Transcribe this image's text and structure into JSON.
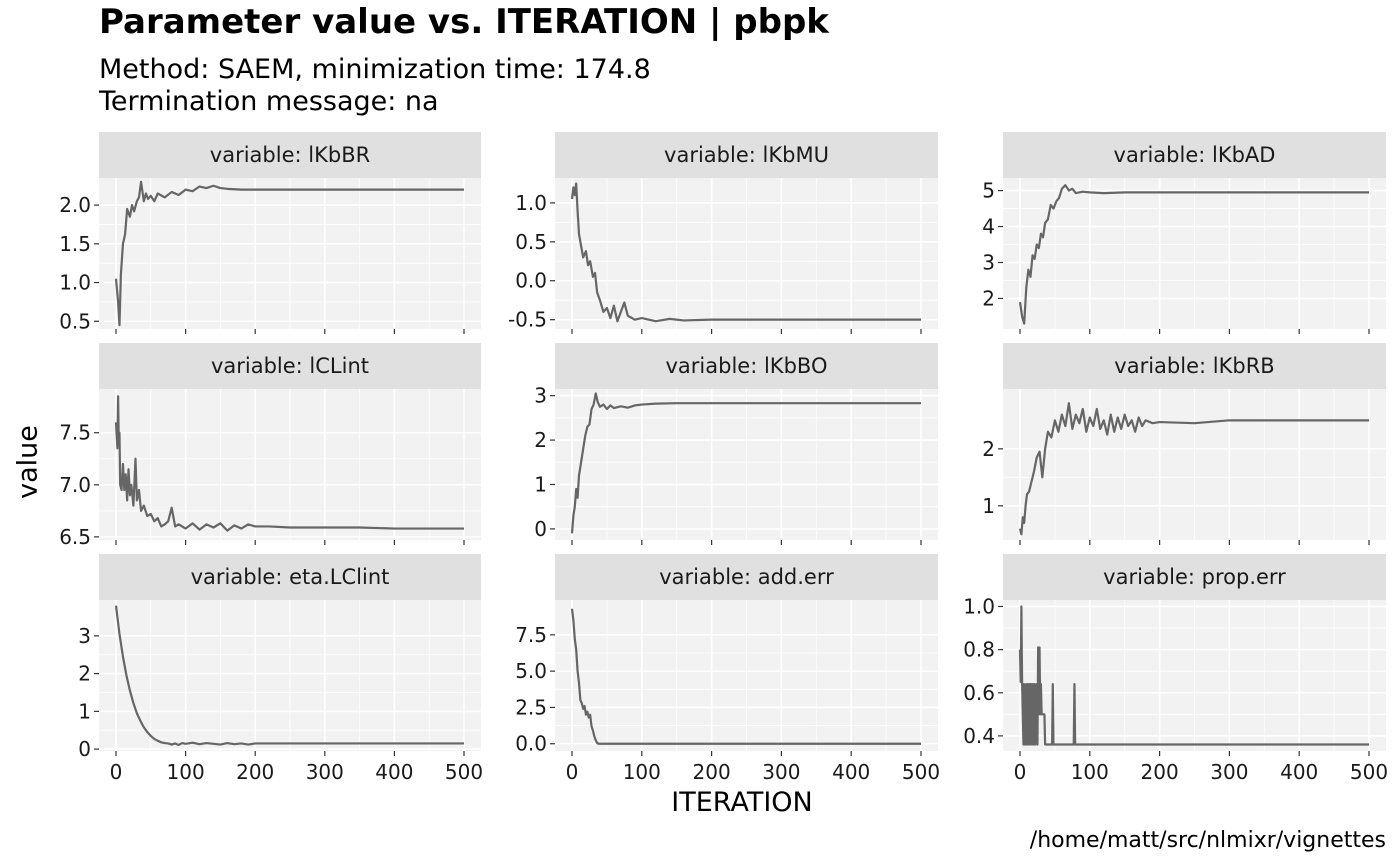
{
  "title": "Parameter value vs. ITERATION | pbpk",
  "subtitle_line1": "Method: SAEM, minimization time: 174.8",
  "subtitle_line2": "Termination message: na",
  "caption": "/home/matt/src/nlmixr/vignettes",
  "colors": {
    "line": "#666666",
    "panel_bg": "#f2f2f2",
    "strip_bg": "#e0e0e0",
    "grid": "#ffffff"
  },
  "chart_data": {
    "type": "line",
    "xlabel": "ITERATION",
    "ylabel": "value",
    "xlim": [
      0,
      500
    ],
    "xticks": [
      0,
      100,
      200,
      300,
      400,
      500
    ],
    "facet_prefix": "variable: ",
    "facets": [
      {
        "name": "lKbBR",
        "strip": "variable: lKbBR",
        "ylim": [
          0.4,
          2.35
        ],
        "yticks": [
          0.5,
          1.0,
          1.5,
          2.0
        ],
        "ytick_labels": [
          "0.5",
          "1.0",
          "1.5",
          "2.0"
        ],
        "x": [
          0,
          3,
          5,
          7,
          10,
          13,
          16,
          20,
          23,
          26,
          30,
          33,
          36,
          40,
          43,
          46,
          50,
          55,
          60,
          70,
          80,
          90,
          100,
          110,
          120,
          130,
          140,
          150,
          160,
          180,
          200,
          300,
          400,
          500
        ],
        "y": [
          1.05,
          0.75,
          0.45,
          1.1,
          1.5,
          1.62,
          1.95,
          1.85,
          2.0,
          1.92,
          2.05,
          2.1,
          2.3,
          2.05,
          2.15,
          2.08,
          2.12,
          2.05,
          2.15,
          2.1,
          2.17,
          2.13,
          2.2,
          2.18,
          2.24,
          2.22,
          2.25,
          2.22,
          2.21,
          2.2,
          2.2,
          2.2,
          2.2,
          2.2
        ]
      },
      {
        "name": "lKbMU",
        "strip": "variable: lKbMU",
        "ylim": [
          -0.62,
          1.32
        ],
        "yticks": [
          -0.5,
          0.0,
          0.5,
          1.0
        ],
        "ytick_labels": [
          "-0.5",
          "0.0",
          "0.5",
          "1.0"
        ],
        "x": [
          0,
          2,
          4,
          6,
          8,
          10,
          13,
          16,
          20,
          23,
          26,
          30,
          33,
          36,
          40,
          45,
          50,
          55,
          60,
          65,
          70,
          75,
          80,
          90,
          100,
          120,
          140,
          160,
          200,
          300,
          400,
          500
        ],
        "y": [
          1.05,
          1.2,
          1.1,
          1.25,
          0.9,
          0.6,
          0.45,
          0.3,
          0.38,
          0.2,
          0.25,
          0.05,
          0.1,
          -0.15,
          -0.25,
          -0.4,
          -0.35,
          -0.48,
          -0.32,
          -0.52,
          -0.4,
          -0.28,
          -0.45,
          -0.5,
          -0.48,
          -0.52,
          -0.49,
          -0.51,
          -0.5,
          -0.5,
          -0.5,
          -0.5
        ]
      },
      {
        "name": "lKbAD",
        "strip": "variable: lKbAD",
        "ylim": [
          1.15,
          5.35
        ],
        "yticks": [
          2,
          3,
          4,
          5
        ],
        "ytick_labels": [
          "2",
          "3",
          "4",
          "5"
        ],
        "x": [
          0,
          3,
          6,
          9,
          12,
          15,
          18,
          21,
          24,
          27,
          30,
          33,
          36,
          40,
          44,
          48,
          52,
          56,
          60,
          65,
          70,
          75,
          80,
          90,
          100,
          120,
          150,
          200,
          300,
          400,
          500
        ],
        "y": [
          1.9,
          1.5,
          1.3,
          2.3,
          2.8,
          2.6,
          3.2,
          3.1,
          3.5,
          3.4,
          3.8,
          3.7,
          4.1,
          4.2,
          4.6,
          4.5,
          4.7,
          4.8,
          5.05,
          5.15,
          5.0,
          5.05,
          4.93,
          4.97,
          4.95,
          4.93,
          4.95,
          4.95,
          4.95,
          4.95,
          4.95
        ]
      },
      {
        "name": "lCLint",
        "strip": "variable: lCLint",
        "ylim": [
          6.47,
          7.92
        ],
        "yticks": [
          6.5,
          7.0,
          7.5
        ],
        "ytick_labels": [
          "6.5",
          "7.0",
          "7.5"
        ],
        "x": [
          0,
          2,
          3,
          4,
          5,
          6,
          8,
          10,
          12,
          14,
          16,
          18,
          20,
          22,
          25,
          28,
          30,
          33,
          36,
          40,
          45,
          50,
          55,
          60,
          65,
          70,
          75,
          80,
          85,
          90,
          100,
          110,
          120,
          130,
          140,
          150,
          160,
          170,
          180,
          190,
          200,
          220,
          250,
          300,
          350,
          400,
          450,
          500
        ],
        "y": [
          7.6,
          7.35,
          7.85,
          7.4,
          7.5,
          7.0,
          6.95,
          7.2,
          6.95,
          7.1,
          6.85,
          7.15,
          6.9,
          7.0,
          6.8,
          7.25,
          6.85,
          6.95,
          6.75,
          6.8,
          6.7,
          6.72,
          6.65,
          6.68,
          6.6,
          6.62,
          6.65,
          6.78,
          6.6,
          6.62,
          6.58,
          6.63,
          6.57,
          6.62,
          6.59,
          6.63,
          6.56,
          6.61,
          6.58,
          6.62,
          6.6,
          6.6,
          6.59,
          6.59,
          6.59,
          6.58,
          6.58,
          6.58
        ]
      },
      {
        "name": "lKbBO",
        "strip": "variable: lKbBO",
        "ylim": [
          -0.25,
          3.15
        ],
        "yticks": [
          0,
          1,
          2,
          3
        ],
        "ytick_labels": [
          "0",
          "1",
          "2",
          "3"
        ],
        "x": [
          0,
          2,
          4,
          6,
          8,
          10,
          13,
          16,
          19,
          22,
          25,
          28,
          31,
          34,
          37,
          40,
          45,
          50,
          55,
          60,
          70,
          80,
          90,
          100,
          120,
          150,
          200,
          300,
          400,
          500
        ],
        "y": [
          -0.1,
          0.3,
          0.5,
          0.9,
          0.7,
          1.2,
          1.5,
          1.8,
          2.1,
          2.3,
          2.35,
          2.7,
          2.8,
          3.05,
          2.85,
          2.75,
          2.8,
          2.7,
          2.78,
          2.72,
          2.76,
          2.73,
          2.78,
          2.8,
          2.82,
          2.83,
          2.83,
          2.83,
          2.83,
          2.83
        ]
      },
      {
        "name": "lKbRB",
        "strip": "variable: lKbRB",
        "ylim": [
          0.4,
          3.05
        ],
        "yticks": [
          1,
          2
        ],
        "ytick_labels": [
          "1",
          "2"
        ],
        "x": [
          0,
          2,
          4,
          6,
          8,
          10,
          13,
          16,
          20,
          24,
          28,
          32,
          36,
          40,
          45,
          50,
          55,
          60,
          65,
          70,
          75,
          80,
          85,
          90,
          95,
          100,
          105,
          110,
          115,
          120,
          125,
          130,
          135,
          140,
          145,
          150,
          155,
          160,
          165,
          170,
          175,
          180,
          190,
          200,
          250,
          300,
          400,
          500
        ],
        "y": [
          0.6,
          0.5,
          0.8,
          0.7,
          1.0,
          1.2,
          1.25,
          1.4,
          1.6,
          1.85,
          1.95,
          1.5,
          2.0,
          2.3,
          2.2,
          2.5,
          2.3,
          2.6,
          2.4,
          2.8,
          2.35,
          2.6,
          2.45,
          2.7,
          2.3,
          2.55,
          2.4,
          2.7,
          2.35,
          2.5,
          2.25,
          2.6,
          2.3,
          2.55,
          2.35,
          2.6,
          2.4,
          2.5,
          2.3,
          2.55,
          2.4,
          2.5,
          2.45,
          2.47,
          2.45,
          2.5,
          2.5,
          2.5
        ]
      },
      {
        "name": "eta.LClint",
        "strip": "variable: eta.LClint",
        "ylim": [
          -0.05,
          3.95
        ],
        "yticks": [
          0,
          1,
          2,
          3
        ],
        "ytick_labels": [
          "0",
          "1",
          "2",
          "3"
        ],
        "x": [
          0,
          5,
          10,
          15,
          20,
          25,
          30,
          35,
          40,
          45,
          50,
          55,
          60,
          65,
          70,
          75,
          80,
          85,
          90,
          95,
          100,
          110,
          120,
          130,
          140,
          150,
          160,
          170,
          180,
          190,
          200,
          250,
          300,
          400,
          500
        ],
        "y": [
          3.8,
          3.05,
          2.45,
          1.95,
          1.55,
          1.22,
          0.95,
          0.75,
          0.58,
          0.45,
          0.35,
          0.27,
          0.22,
          0.18,
          0.16,
          0.15,
          0.12,
          0.15,
          0.11,
          0.16,
          0.14,
          0.17,
          0.13,
          0.16,
          0.14,
          0.12,
          0.16,
          0.13,
          0.15,
          0.12,
          0.15,
          0.15,
          0.15,
          0.15,
          0.15
        ]
      },
      {
        "name": "add.err",
        "strip": "variable: add.err",
        "ylim": [
          -0.5,
          9.9
        ],
        "yticks": [
          0.0,
          2.5,
          5.0,
          7.5
        ],
        "ytick_labels": [
          "0.0",
          "2.5",
          "5.0",
          "7.5"
        ],
        "x": [
          0,
          2,
          4,
          6,
          8,
          10,
          12,
          14,
          16,
          18,
          20,
          22,
          24,
          26,
          28,
          30,
          32,
          34,
          36,
          38,
          40,
          50,
          100,
          200,
          300,
          400,
          500
        ],
        "y": [
          9.3,
          8.5,
          7.2,
          6.5,
          5.0,
          4.2,
          3.0,
          2.8,
          2.4,
          2.6,
          2.0,
          2.2,
          1.8,
          2.0,
          1.2,
          0.9,
          0.5,
          0.25,
          0.05,
          0.0,
          0.0,
          0.0,
          0.0,
          0.0,
          0.0,
          0.0,
          0.0
        ]
      },
      {
        "name": "prop.err",
        "strip": "variable: prop.err",
        "ylim": [
          0.33,
          1.03
        ],
        "yticks": [
          0.4,
          0.6,
          0.8,
          1.0
        ],
        "ytick_labels": [
          "0.4",
          "0.6",
          "0.8",
          "1.0"
        ],
        "x": [
          0,
          1,
          2,
          3,
          4,
          5,
          6,
          7,
          8,
          9,
          10,
          11,
          12,
          13,
          14,
          15,
          16,
          17,
          18,
          19,
          20,
          21,
          22,
          23,
          24,
          25,
          26,
          27,
          28,
          29,
          30,
          31,
          32,
          33,
          34,
          35,
          36,
          37,
          38,
          39,
          40,
          41,
          42,
          43,
          44,
          45,
          46,
          47,
          48,
          49,
          50,
          75,
          76,
          77,
          78,
          79,
          80,
          81,
          100,
          200,
          300,
          400,
          500
        ],
        "y": [
          0.8,
          0.65,
          1.0,
          0.65,
          0.5,
          0.36,
          0.64,
          0.36,
          0.36,
          0.64,
          0.36,
          0.64,
          0.36,
          0.64,
          0.36,
          0.64,
          0.36,
          0.64,
          0.36,
          0.64,
          0.36,
          0.64,
          0.36,
          0.5,
          0.64,
          0.36,
          0.81,
          0.5,
          0.81,
          0.5,
          0.64,
          0.5,
          0.5,
          0.5,
          0.5,
          0.5,
          0.36,
          0.36,
          0.36,
          0.36,
          0.36,
          0.36,
          0.36,
          0.36,
          0.36,
          0.36,
          0.36,
          0.64,
          0.36,
          0.36,
          0.36,
          0.36,
          0.36,
          0.36,
          0.64,
          0.36,
          0.36,
          0.36,
          0.36,
          0.36,
          0.36,
          0.36,
          0.36
        ]
      }
    ]
  }
}
